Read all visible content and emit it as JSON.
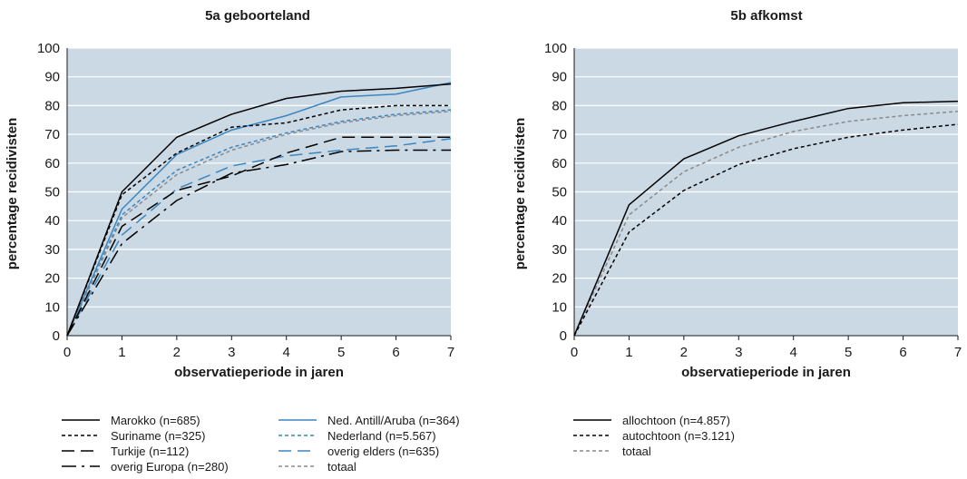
{
  "chart_data": [
    {
      "type": "line",
      "title": "5a geboorteland",
      "xlabel": "observatieperiode in jaren",
      "ylabel": "percentage recidivisten",
      "x": [
        0,
        1,
        2,
        3,
        4,
        5,
        6,
        7
      ],
      "xlim": [
        0,
        7
      ],
      "ylim": [
        0,
        100
      ],
      "yticks": [
        0,
        10,
        20,
        30,
        40,
        50,
        60,
        70,
        80,
        90,
        100
      ],
      "grid": true,
      "legend_position": "bottom",
      "series": [
        {
          "name": "Marokko (n=685)",
          "values": [
            0,
            50,
            69,
            77,
            82.5,
            85,
            86,
            87.5
          ],
          "color": "#000000",
          "style": "solid"
        },
        {
          "name": "Suriname (n=325)",
          "values": [
            0,
            49,
            63.5,
            72.5,
            74,
            78.5,
            80,
            80
          ],
          "color": "#000000",
          "style": "short-dash"
        },
        {
          "name": "Turkije (n=112)",
          "values": [
            0,
            38,
            50.5,
            55.5,
            63.5,
            69,
            69,
            69
          ],
          "color": "#000000",
          "style": "long-dash"
        },
        {
          "name": "overig Europa (n=280)",
          "values": [
            0,
            32,
            47,
            56.5,
            59.5,
            64,
            64.5,
            64.5
          ],
          "color": "#000000",
          "style": "dash-dot"
        },
        {
          "name": "Ned. Antill/Aruba (n=364)",
          "values": [
            0,
            44,
            63,
            71.5,
            76.5,
            83,
            84,
            88
          ],
          "color": "#3a86c0",
          "style": "solid"
        },
        {
          "name": "Nederland (n=5.567)",
          "values": [
            0,
            42,
            57.5,
            65.5,
            70.5,
            74.5,
            77,
            78.5
          ],
          "color": "#3a86c0",
          "style": "short-dash"
        },
        {
          "name": "overig elders (n=635)",
          "values": [
            0,
            35,
            51,
            59,
            62.5,
            64.5,
            66,
            68.5
          ],
          "color": "#3a86c0",
          "style": "long-dash"
        },
        {
          "name": "totaal",
          "values": [
            0,
            41,
            56,
            64.5,
            70,
            74,
            76.5,
            78
          ],
          "color": "#8a8a8a",
          "style": "short-dash"
        }
      ]
    },
    {
      "type": "line",
      "title": "5b afkomst",
      "xlabel": "observatieperiode in jaren",
      "ylabel": "percentage recidivisten",
      "x": [
        0,
        1,
        2,
        3,
        4,
        5,
        6,
        7
      ],
      "xlim": [
        0,
        7
      ],
      "ylim": [
        0,
        100
      ],
      "yticks": [
        0,
        10,
        20,
        30,
        40,
        50,
        60,
        70,
        80,
        90,
        100
      ],
      "grid": true,
      "legend_position": "bottom",
      "series": [
        {
          "name": "allochtoon (n=4.857)",
          "values": [
            0,
            45.5,
            61.5,
            69.5,
            74.5,
            79,
            81,
            81.5
          ],
          "color": "#000000",
          "style": "solid"
        },
        {
          "name": "autochtoon (n=3.121)",
          "values": [
            0,
            36,
            50.5,
            59.5,
            65,
            69,
            71.5,
            73.5
          ],
          "color": "#000000",
          "style": "short-dash"
        },
        {
          "name": "totaal",
          "values": [
            0,
            42,
            57,
            65.5,
            71,
            74.5,
            76.5,
            78
          ],
          "color": "#8a8a8a",
          "style": "short-dash"
        }
      ]
    }
  ],
  "style": {
    "plot_bg": "#cbd9e5",
    "grid_color": "#ffffff"
  }
}
